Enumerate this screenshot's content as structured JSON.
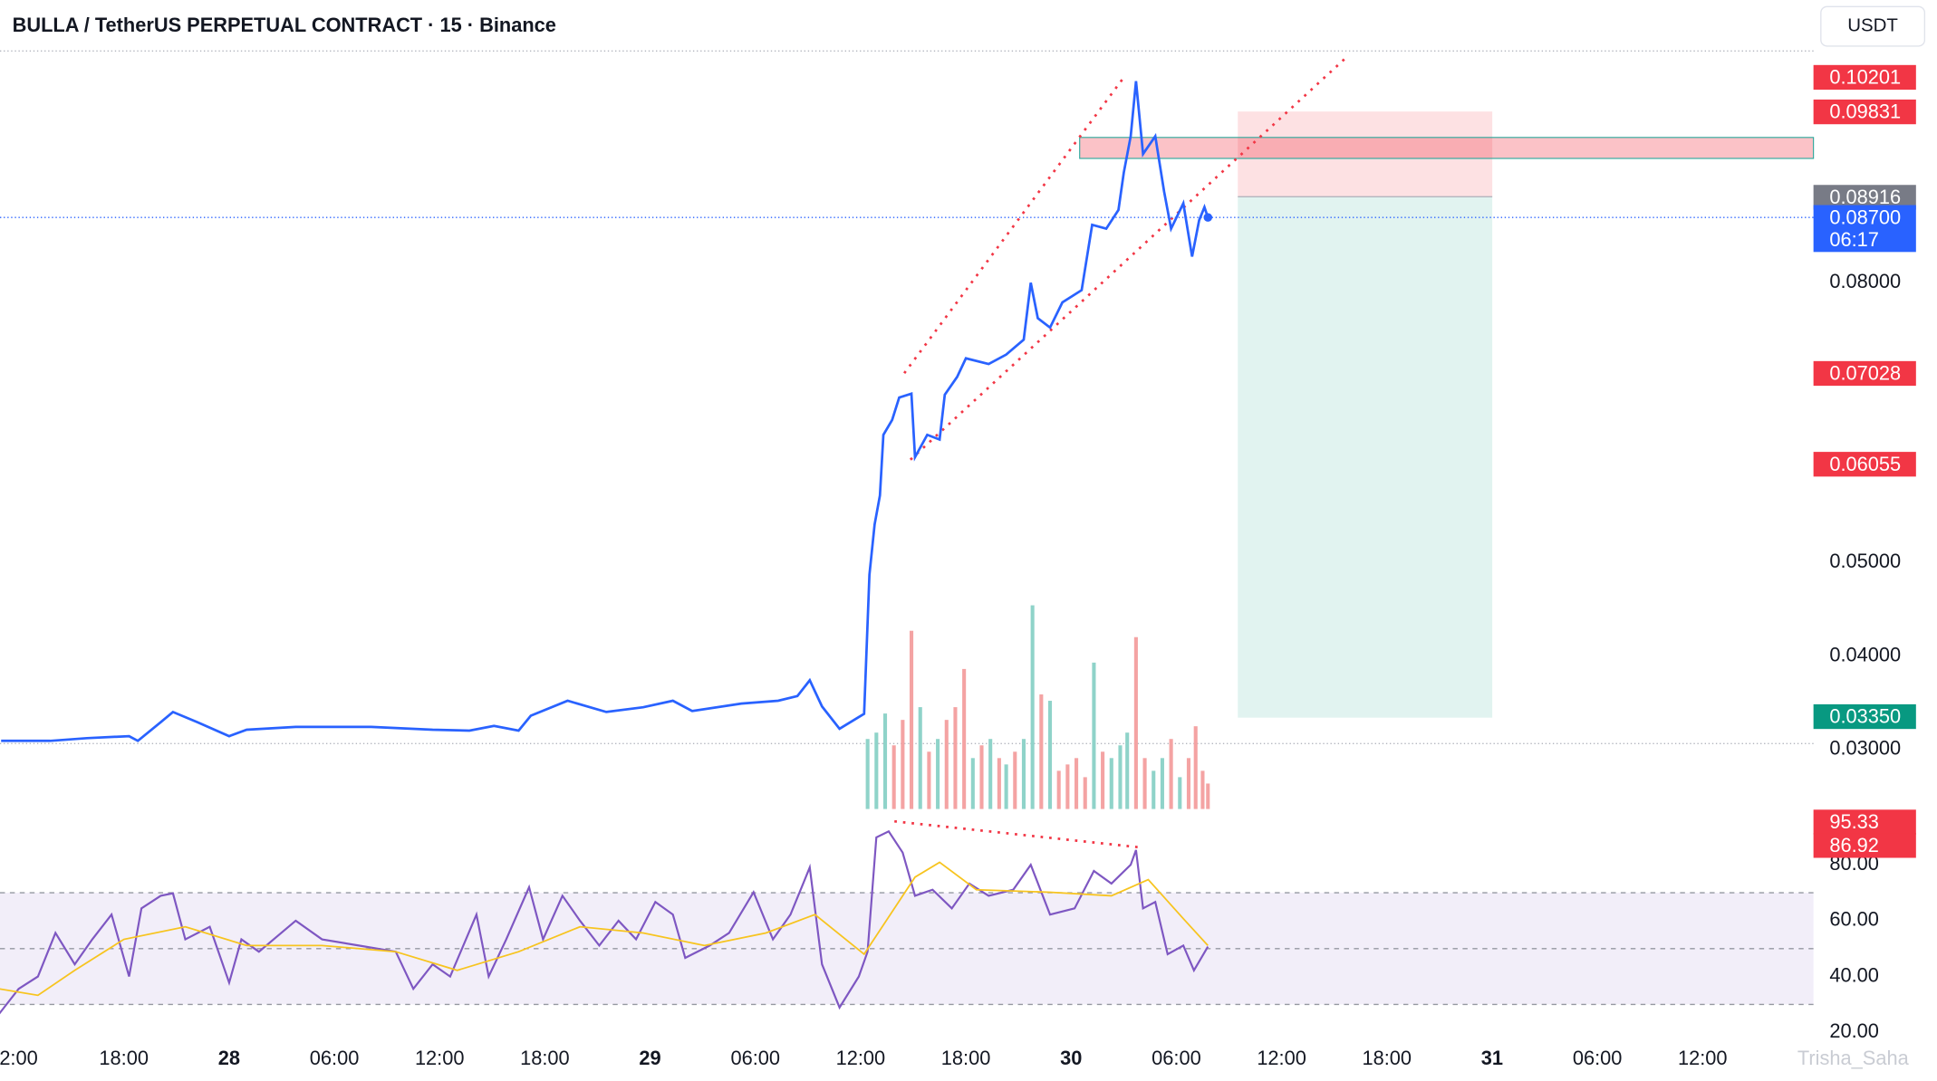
{
  "chart_data": [
    {
      "type": "line",
      "title": "BULLA / TetherUS PERPETUAL CONTRACT · 15 · Binance",
      "currency_button": "USDT",
      "watermark": "Trisha_Saha",
      "color": "#2962ff",
      "x": [
        -1.0,
        1.8,
        3.9,
        6.3,
        6.8,
        8.1,
        8.8,
        10.2,
        12.0,
        13.0,
        15.8,
        20.1,
        23.6,
        25.7,
        27.1,
        28.5,
        29.2,
        31.3,
        33.5,
        35.6,
        37.3,
        38.4,
        41.2,
        43.3,
        44.4,
        45.1,
        45.8,
        46.8,
        48.2,
        48.5,
        48.8,
        49.1,
        49.3,
        49.8,
        50.2,
        50.9,
        51.1,
        51.8,
        52.5,
        52.8,
        53.5,
        54.0,
        55.3,
        56.3,
        57.3,
        57.7,
        58.1,
        58.8,
        59.5,
        60.6,
        61.2,
        62.0,
        62.7,
        63.0,
        63.4,
        63.7,
        64.1,
        64.8,
        65.3,
        65.7,
        66.4,
        66.9,
        67.3,
        67.6,
        67.8
      ],
      "values": [
        0.0309,
        0.0309,
        0.0312,
        0.0314,
        0.0309,
        0.0329,
        0.034,
        0.0329,
        0.0314,
        0.0321,
        0.0324,
        0.0324,
        0.0321,
        0.032,
        0.0325,
        0.032,
        0.0336,
        0.0352,
        0.034,
        0.0345,
        0.0352,
        0.0341,
        0.0349,
        0.0352,
        0.0357,
        0.0374,
        0.0346,
        0.0322,
        0.0338,
        0.0487,
        0.0541,
        0.0572,
        0.0637,
        0.0653,
        0.0677,
        0.0681,
        0.0613,
        0.0637,
        0.0632,
        0.068,
        0.0699,
        0.0719,
        0.0713,
        0.0723,
        0.0739,
        0.08,
        0.0762,
        0.0752,
        0.0779,
        0.0792,
        0.0862,
        0.0858,
        0.0878,
        0.0918,
        0.0957,
        0.1016,
        0.0938,
        0.0957,
        0.0898,
        0.0858,
        0.0885,
        0.0828,
        0.0867,
        0.0881,
        0.087
      ],
      "xlim": [
        -1.06,
        102.32
      ],
      "ylim": [
        0.0236,
        0.1047
      ],
      "yticks": [
        {
          "value": 0.03,
          "label": "0.03000"
        },
        {
          "value": 0.04,
          "label": "0.04000"
        },
        {
          "value": 0.05,
          "label": "0.05000"
        },
        {
          "value": 0.08,
          "label": "0.08000"
        }
      ],
      "xticks": [
        {
          "value": 0,
          "label": "2:00"
        },
        {
          "value": 6,
          "label": "18:00"
        },
        {
          "value": 12,
          "label": "28"
        },
        {
          "value": 18,
          "label": "06:00"
        },
        {
          "value": 24,
          "label": "12:00"
        },
        {
          "value": 30,
          "label": "18:00"
        },
        {
          "value": 36,
          "label": "29"
        },
        {
          "value": 42,
          "label": "06:00"
        },
        {
          "value": 48,
          "label": "12:00"
        },
        {
          "value": 54,
          "label": "18:00"
        },
        {
          "value": 60,
          "label": "30"
        },
        {
          "value": 66,
          "label": "06:00"
        },
        {
          "value": 72,
          "label": "12:00"
        },
        {
          "value": 78,
          "label": "18:00"
        },
        {
          "value": 84,
          "label": "31"
        },
        {
          "value": 90,
          "label": "06:00"
        },
        {
          "value": 96,
          "label": "12:00"
        }
      ],
      "annotations": [
        {
          "value": 0.10201,
          "label": "0.10201",
          "color": "#f23645"
        },
        {
          "value": 0.09831,
          "label": "0.09831",
          "color": "#f23645"
        },
        {
          "value": 0.08916,
          "label": "0.08916",
          "color": "#787b86"
        },
        {
          "value": 0.087,
          "label": "0.08700",
          "sublabel": "06:17",
          "color": "#2962ff"
        },
        {
          "value": 0.07028,
          "label": "0.07028",
          "color": "#f23645"
        },
        {
          "value": 0.06055,
          "label": "0.06055",
          "color": "#f23645"
        },
        {
          "value": 0.0335,
          "label": "0.03350",
          "color": "#089981"
        }
      ],
      "volume": {
        "x": [
          48.4,
          48.9,
          49.4,
          49.9,
          50.4,
          50.9,
          51.4,
          51.9,
          52.4,
          52.9,
          53.4,
          53.9,
          54.4,
          54.9,
          55.4,
          55.9,
          56.3,
          56.8,
          57.3,
          57.8,
          58.3,
          58.8,
          59.3,
          59.8,
          60.3,
          60.8,
          61.3,
          61.8,
          62.3,
          62.8,
          63.2,
          63.7,
          64.2,
          64.7,
          65.2,
          65.7,
          66.2,
          66.7,
          67.1,
          67.5,
          67.8
        ],
        "values": [
          55,
          60,
          75,
          50,
          70,
          140,
          80,
          45,
          55,
          70,
          80,
          110,
          40,
          50,
          55,
          40,
          35,
          45,
          55,
          160,
          90,
          85,
          30,
          35,
          40,
          25,
          115,
          45,
          40,
          50,
          60,
          135,
          40,
          30,
          40,
          55,
          25,
          40,
          65,
          30,
          20
        ],
        "colors": [
          "#8fd3c9",
          "#8fd3c9",
          "#8fd3c9",
          "#f4a3a3",
          "#f4a3a3",
          "#f4a3a3",
          "#8fd3c9",
          "#f4a3a3",
          "#8fd3c9",
          "#f4a3a3",
          "#f4a3a3",
          "#f4a3a3",
          "#8fd3c9",
          "#f4a3a3",
          "#8fd3c9",
          "#f4a3a3",
          "#8fd3c9",
          "#f4a3a3",
          "#8fd3c9",
          "#8fd3c9",
          "#f4a3a3",
          "#8fd3c9",
          "#f4a3a3",
          "#f4a3a3",
          "#f4a3a3",
          "#f4a3a3",
          "#8fd3c9",
          "#f4a3a3",
          "#8fd3c9",
          "#8fd3c9",
          "#8fd3c9",
          "#f4a3a3",
          "#f4a3a3",
          "#8fd3c9",
          "#8fd3c9",
          "#f4a3a3",
          "#8fd3c9",
          "#f4a3a3",
          "#f4a3a3",
          "#f4a3a3",
          "#f4a3a3"
        ]
      }
    },
    {
      "type": "line",
      "xlim": [
        -1.06,
        102.32
      ],
      "ylim": [
        16,
        98
      ],
      "band": [
        30,
        70
      ],
      "midline": 50,
      "yticks": [
        {
          "value": 20,
          "label": "20.00"
        },
        {
          "value": 40,
          "label": "40.00"
        },
        {
          "value": 60,
          "label": "60.00"
        },
        {
          "value": 80,
          "label": "80.00"
        }
      ],
      "series": [
        {
          "color": "#7e57c2",
          "x": [
            -1.1,
            0,
            1.1,
            2.1,
            3.2,
            4.2,
            5.3,
            6.3,
            7.0,
            8.1,
            8.8,
            9.5,
            10.9,
            12.0,
            12.7,
            13.7,
            15.8,
            17.3,
            19.4,
            21.5,
            22.5,
            23.6,
            24.6,
            26.1,
            26.8,
            27.8,
            29.1,
            29.9,
            31.0,
            32.0,
            33.1,
            34.2,
            35.2,
            36.3,
            37.3,
            38.0,
            39.4,
            40.5,
            41.9,
            43.0,
            44.0,
            45.1,
            45.8,
            46.8,
            47.9,
            48.4,
            48.9,
            49.6,
            50.4,
            51.1,
            52.1,
            53.2,
            54.2,
            55.3,
            56.7,
            57.7,
            58.8,
            60.2,
            61.3,
            62.3,
            63.4,
            63.7,
            64.1,
            64.8,
            65.5,
            66.4,
            67.0,
            67.8
          ],
          "values": [
            26.7,
            35.6,
            40,
            55.6,
            44.4,
            53.3,
            62.2,
            40,
            64.4,
            68.9,
            69.8,
            53.3,
            57.8,
            37.8,
            53.3,
            48.9,
            60,
            53.3,
            51.1,
            48.9,
            35.6,
            44.4,
            40,
            62.2,
            40,
            53.3,
            72,
            53.3,
            68.9,
            60,
            51.1,
            60,
            53.3,
            66.7,
            62.2,
            46.7,
            51.1,
            55.6,
            70.2,
            53.3,
            62.2,
            79.1,
            44.4,
            28.9,
            40,
            48.9,
            89.8,
            92,
            84.4,
            68.9,
            71.1,
            64.4,
            73.3,
            68.9,
            71.1,
            80,
            62.2,
            64.4,
            77.8,
            73.3,
            80,
            85.3,
            64.4,
            66.7,
            48,
            51.1,
            42.2,
            50.7
          ]
        },
        {
          "color": "#f7c41f",
          "x": [
            -1.1,
            1.1,
            3.2,
            6.0,
            9.5,
            13.0,
            17.3,
            21.5,
            25.0,
            28.5,
            32.0,
            35.6,
            39.1,
            42.6,
            45.4,
            48.2,
            51.1,
            52.5,
            54.6,
            58.8,
            62.3,
            64.4,
            66.5,
            67.8
          ],
          "values": [
            35.6,
            33.3,
            42.2,
            53.3,
            57.8,
            51.1,
            51.1,
            48.9,
            42.2,
            48.9,
            57.8,
            55.6,
            51.1,
            55.6,
            62.2,
            48,
            75.6,
            80.9,
            71.1,
            70.2,
            68.9,
            74.7,
            60,
            51.1
          ]
        }
      ],
      "annotations": [
        {
          "value": 95.33,
          "label": "95.33",
          "color": "#f23645"
        },
        {
          "value": 86.92,
          "label": "86.92",
          "color": "#f23645"
        }
      ]
    }
  ]
}
